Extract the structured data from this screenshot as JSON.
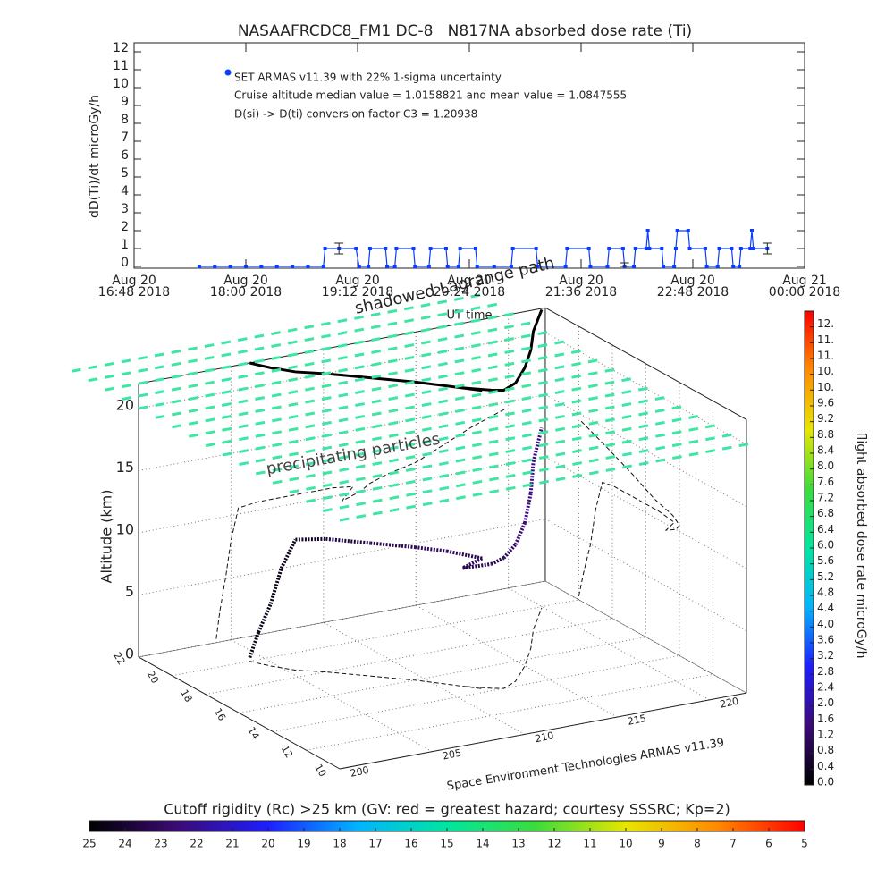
{
  "chart_data": [
    {
      "type": "line",
      "title": "NASAAFRCDC8_FM1 DC-8   N817NA absorbed dose rate (Ti)",
      "y_label": "dD(Ti)/dt microGy/h",
      "x_label": "UT time",
      "annotations": [
        "Cruise altitude median value = 1.0158821 and mean value = 1.0847555",
        "D(si) -> D(ti) conversion factor C3 = 1.20938"
      ],
      "xlim": [
        "2018-08-20 16:48",
        "2018-08-21 00:00"
      ],
      "xticks": [
        {
          "value": "2018-08-20 16:48",
          "label": "Aug 20\n16:48 2018"
        },
        {
          "value": "2018-08-20 18:00",
          "label": "Aug 20\n18:00 2018"
        },
        {
          "value": "2018-08-20 19:12",
          "label": "Aug 20\n19:12 2018"
        },
        {
          "value": "2018-08-20 20:24",
          "label": "Aug 20\n20:24 2018"
        },
        {
          "value": "2018-08-20 21:36",
          "label": "Aug 20\n21:36 2018"
        },
        {
          "value": "2018-08-20 22:48",
          "label": "Aug 20\n22:48 2018"
        },
        {
          "value": "2018-08-21 00:00",
          "label": "Aug 21\n00:00 2018"
        }
      ],
      "ylim": [
        -0.1,
        12.5
      ],
      "yticks": [
        0,
        1,
        2,
        3,
        4,
        5,
        6,
        7,
        8,
        9,
        10,
        11,
        12
      ],
      "series": [
        {
          "name": "SET ARMAS v11.39 with 22% 1-sigma uncertainty",
          "color": "#0a3cff",
          "x": [
            "2018-08-20 17:30",
            "2018-08-20 17:40",
            "2018-08-20 17:50",
            "2018-08-20 18:00",
            "2018-08-20 18:10",
            "2018-08-20 18:20",
            "2018-08-20 18:30",
            "2018-08-20 18:40",
            "2018-08-20 18:50",
            "2018-08-20 18:51",
            "2018-08-20 19:00",
            "2018-08-20 19:11",
            "2018-08-20 19:13",
            "2018-08-20 19:19",
            "2018-08-20 19:20",
            "2018-08-20 19:30",
            "2018-08-20 19:31",
            "2018-08-20 19:36",
            "2018-08-20 19:37",
            "2018-08-20 19:48",
            "2018-08-20 19:49",
            "2018-08-20 19:58",
            "2018-08-20 19:59",
            "2018-08-20 20:09",
            "2018-08-20 20:10",
            "2018-08-20 20:17",
            "2018-08-20 20:18",
            "2018-08-20 20:28",
            "2018-08-20 20:29",
            "2018-08-20 20:40",
            "2018-08-20 20:51",
            "2018-08-20 20:52",
            "2018-08-20 21:07",
            "2018-08-20 21:08",
            "2018-08-20 21:26",
            "2018-08-20 21:27",
            "2018-08-20 21:41",
            "2018-08-20 21:42",
            "2018-08-20 21:53",
            "2018-08-20 21:54",
            "2018-08-20 22:03",
            "2018-08-20 22:04",
            "2018-08-20 22:10",
            "2018-08-20 22:11",
            "2018-08-20 22:18",
            "2018-08-20 22:19",
            "2018-08-20 22:20",
            "2018-08-20 22:28",
            "2018-08-20 22:29",
            "2018-08-20 22:36",
            "2018-08-20 22:37",
            "2018-08-20 22:38",
            "2018-08-20 22:45",
            "2018-08-20 22:46",
            "2018-08-20 22:56",
            "2018-08-20 22:57",
            "2018-08-20 23:04",
            "2018-08-20 23:05",
            "2018-08-20 23:13",
            "2018-08-20 23:14",
            "2018-08-20 23:18",
            "2018-08-20 23:19",
            "2018-08-20 23:25",
            "2018-08-20 23:26",
            "2018-08-20 23:27",
            "2018-08-20 23:36"
          ],
          "values": [
            0,
            0,
            0,
            0,
            0,
            0,
            0,
            0,
            0,
            1,
            1,
            1,
            0,
            0,
            1,
            1,
            0,
            0,
            1,
            1,
            0,
            0,
            1,
            1,
            0,
            0,
            1,
            1,
            0,
            0,
            0,
            1,
            1,
            0,
            0,
            1,
            1,
            0,
            0,
            1,
            1,
            0,
            0,
            1,
            1,
            2,
            1,
            1,
            0,
            0,
            1,
            2,
            2,
            1,
            1,
            0,
            0,
            1,
            1,
            0,
            0,
            1,
            1,
            2,
            1,
            1
          ]
        }
      ],
      "error_bars": {
        "x": [
          "2018-08-20 19:00",
          "2018-08-20 22:04",
          "2018-08-20 23:36"
        ],
        "values": [
          1,
          0.1,
          1
        ],
        "errors": [
          0.3,
          0.1,
          0.3
        ]
      }
    },
    {
      "type": "3d",
      "subtitle": "Space Environment Technologies ARMAS v11.39",
      "z_label": "Altitude (km)",
      "xlim": [
        200,
        222
      ],
      "xticks": [
        200,
        205,
        210,
        215,
        220
      ],
      "ylim": [
        10,
        22
      ],
      "yticks": [
        10,
        12,
        14,
        16,
        18,
        20,
        22
      ],
      "zlim": [
        0,
        22
      ],
      "zticks": [
        0,
        5,
        10,
        15,
        20
      ],
      "grid": true,
      "colormap": [
        "#000000",
        "#3c0a78",
        "#1e1eff",
        "#00b4ff",
        "#00e6a0",
        "#3cdc3c",
        "#e6e600",
        "#ff8c00",
        "#ff0000"
      ],
      "trajectory": {
        "lon": [
          204.2,
          204.4,
          204.7,
          205.0,
          205.4,
          206.5,
          208.0,
          209.5,
          210.5,
          211.6,
          211.0,
          212.0,
          212.5,
          213.5,
          215.0,
          216.5,
          218.0,
          219.9
        ],
        "lat": [
          20.0,
          19.7,
          19.3,
          19.0,
          18.6,
          18.0,
          17.0,
          16.0,
          15.2,
          14.3,
          14.8,
          14.2,
          14.0,
          14.4,
          15.5,
          16.8,
          18.3,
          19.9
        ],
        "alt": [
          0.3,
          2.5,
          5.0,
          8.0,
          10.5,
          10.7,
          10.7,
          10.7,
          10.7,
          10.5,
          9.5,
          10.0,
          10.5,
          11.0,
          11.5,
          12.5,
          13.5,
          14.5
        ],
        "dose": [
          0.2,
          0.2,
          0.3,
          0.3,
          0.4,
          0.5,
          0.8,
          1.0,
          1.2,
          1.0,
          1.2,
          1.0,
          1.0,
          1.2,
          1.4,
          1.6,
          1.6,
          1.6
        ]
      },
      "lagrange_path": {
        "label": "shadowed Lagrange path",
        "altitude": 24
      },
      "precipitating_particles": {
        "label": "precipitating particles",
        "altitude": 20,
        "color": "#3ee6a4"
      },
      "colorbar": {
        "label": "flight absorbed dose rate microGy/h",
        "lim": [
          0,
          12
        ],
        "ticks": [
          {
            "value": 0,
            "label": "0.0"
          },
          0.4,
          0.8,
          1.2,
          1.6,
          {
            "value": 2,
            "label": "2.0"
          },
          2.4,
          2.8,
          3.2,
          3.6,
          {
            "value": 4,
            "label": "4.0"
          },
          4.4,
          4.8,
          5.2,
          5.6,
          {
            "value": 6,
            "label": "6.0"
          },
          6.4,
          6.8,
          7.2,
          7.6,
          {
            "value": 8,
            "label": "8.0"
          },
          8.4,
          8.8,
          9.2,
          9.6,
          {
            "value": 10,
            "label": "10."
          },
          {
            "value": 10.4,
            "label": "10."
          },
          {
            "value": 10.8,
            "label": "11."
          },
          {
            "value": 11.2,
            "label": "11."
          },
          {
            "value": 11.6,
            "label": "12."
          }
        ]
      },
      "colorbar2": {
        "label": "Cutoff rigidity (Rc) >25 km (GV: red = greatest hazard; courtesy SSSRC; Kp=2)",
        "lim": [
          25,
          5
        ],
        "ticks": [
          25,
          24,
          23,
          22,
          21,
          20,
          19,
          18,
          17,
          16,
          15,
          14,
          13,
          12,
          11,
          10,
          9,
          8,
          7,
          6,
          5
        ]
      }
    }
  ]
}
